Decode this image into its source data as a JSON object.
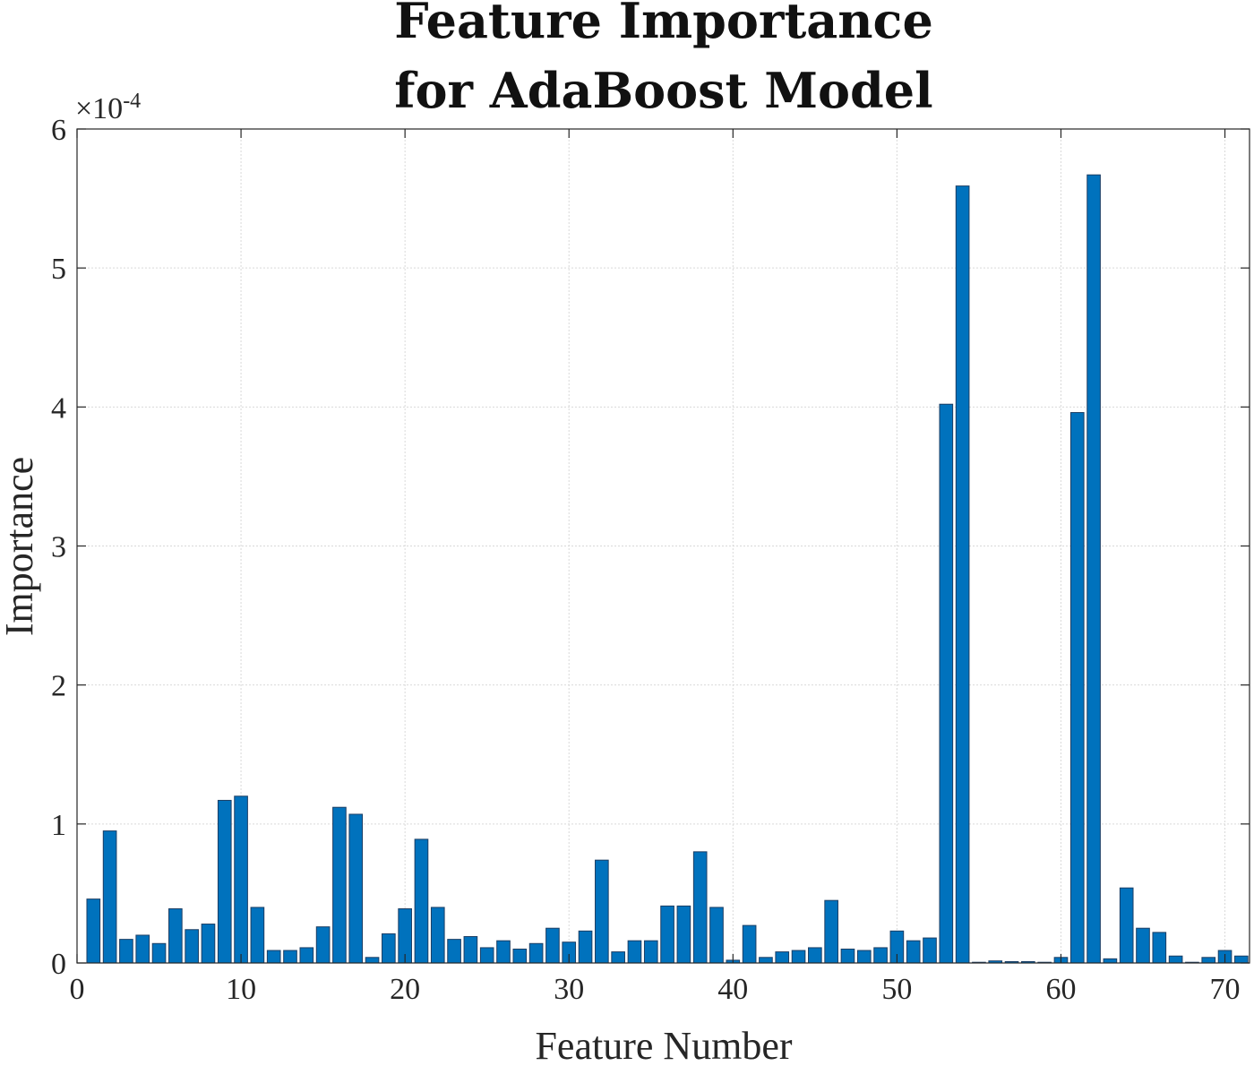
{
  "chart_data": {
    "type": "bar",
    "title_lines": [
      "Feature Importance",
      "for AdaBoost Model"
    ],
    "xlabel": "Feature Number",
    "ylabel": "Importance",
    "y_exponent_prefix": "×10",
    "y_exponent_power": "-4",
    "xlim": [
      0,
      71.5
    ],
    "ylim": [
      0,
      6
    ],
    "xticks": [
      0,
      10,
      20,
      30,
      40,
      50,
      60,
      70
    ],
    "yticks": [
      0,
      1,
      2,
      3,
      4,
      5,
      6
    ],
    "grid": true,
    "bar_color": "#0072bd",
    "x": [
      1,
      2,
      3,
      4,
      5,
      6,
      7,
      8,
      9,
      10,
      11,
      12,
      13,
      14,
      15,
      16,
      17,
      18,
      19,
      20,
      21,
      22,
      23,
      24,
      25,
      26,
      27,
      28,
      29,
      30,
      31,
      32,
      33,
      34,
      35,
      36,
      37,
      38,
      39,
      40,
      41,
      42,
      43,
      44,
      45,
      46,
      47,
      48,
      49,
      50,
      51,
      52,
      53,
      54,
      55,
      56,
      57,
      58,
      59,
      60,
      61,
      62,
      63,
      64,
      65,
      66,
      67,
      68,
      69,
      70,
      71
    ],
    "values": [
      0.46,
      0.95,
      0.17,
      0.2,
      0.14,
      0.39,
      0.24,
      0.28,
      1.17,
      1.2,
      0.4,
      0.09,
      0.09,
      0.11,
      0.26,
      1.12,
      1.07,
      0.04,
      0.21,
      0.39,
      0.89,
      0.4,
      0.17,
      0.19,
      0.11,
      0.16,
      0.1,
      0.14,
      0.25,
      0.15,
      0.23,
      0.74,
      0.08,
      0.16,
      0.16,
      0.41,
      0.41,
      0.8,
      0.4,
      0.02,
      0.27,
      0.04,
      0.08,
      0.09,
      0.11,
      0.45,
      0.1,
      0.09,
      0.11,
      0.23,
      0.16,
      0.18,
      4.02,
      5.59,
      0.005,
      0.015,
      0.01,
      0.01,
      0.005,
      0.04,
      3.96,
      5.67,
      0.03,
      0.54,
      0.25,
      0.22,
      0.05,
      0.005,
      0.04,
      0.09,
      0.05
    ]
  }
}
